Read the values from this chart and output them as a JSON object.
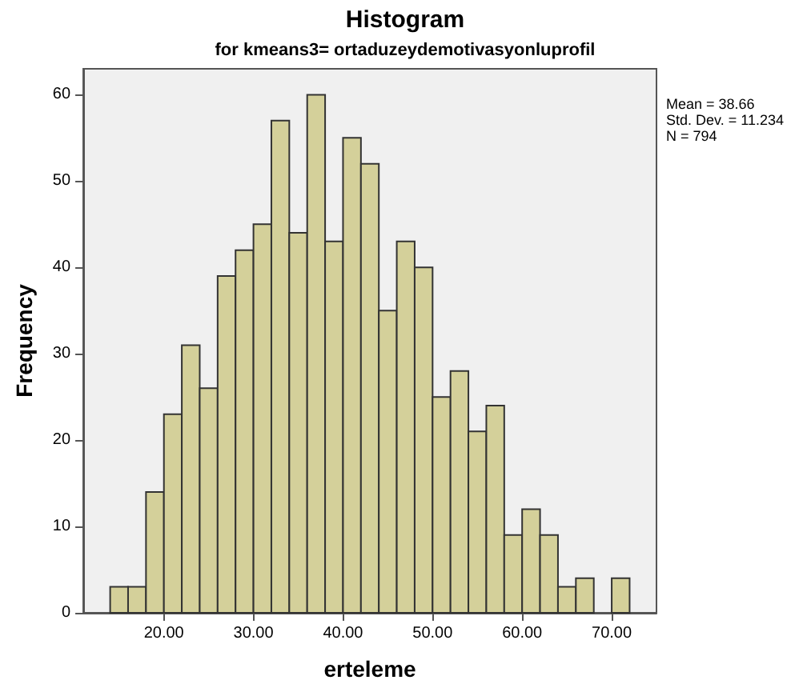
{
  "chart_data": {
    "type": "histogram",
    "title": "Histogram",
    "subtitle": "for kmeans3= ortaduzeydemotivasyonluprofil",
    "xlabel": "erteleme",
    "ylabel": "Frequency",
    "bins": [
      14,
      16,
      18,
      20,
      22,
      24,
      26,
      28,
      30,
      32,
      34,
      36,
      38,
      40,
      42,
      44,
      46,
      48,
      50,
      52,
      54,
      56,
      58,
      60,
      62,
      64,
      66,
      68,
      70,
      72
    ],
    "values": [
      3,
      3,
      14,
      23,
      31,
      26,
      39,
      42,
      45,
      57,
      44,
      60,
      43,
      55,
      52,
      35,
      43,
      40,
      25,
      28,
      21,
      24,
      9,
      12,
      9,
      3,
      4,
      0,
      4
    ],
    "color": "#d4d09a",
    "xlim": [
      11,
      75
    ],
    "xticks": [
      {
        "value": 20,
        "label": "20.00"
      },
      {
        "value": 30,
        "label": "30.00"
      },
      {
        "value": 40,
        "label": "40.00"
      },
      {
        "value": 50,
        "label": "50.00"
      },
      {
        "value": 60,
        "label": "60.00"
      },
      {
        "value": 70,
        "label": "70.00"
      }
    ],
    "ylim": [
      0,
      63
    ],
    "yticks": [
      0,
      10,
      20,
      30,
      40,
      50,
      60
    ],
    "grid": false,
    "annotations": [
      "Mean = 38.66\nStd. Dev. = 11.234\nN = 794"
    ]
  }
}
